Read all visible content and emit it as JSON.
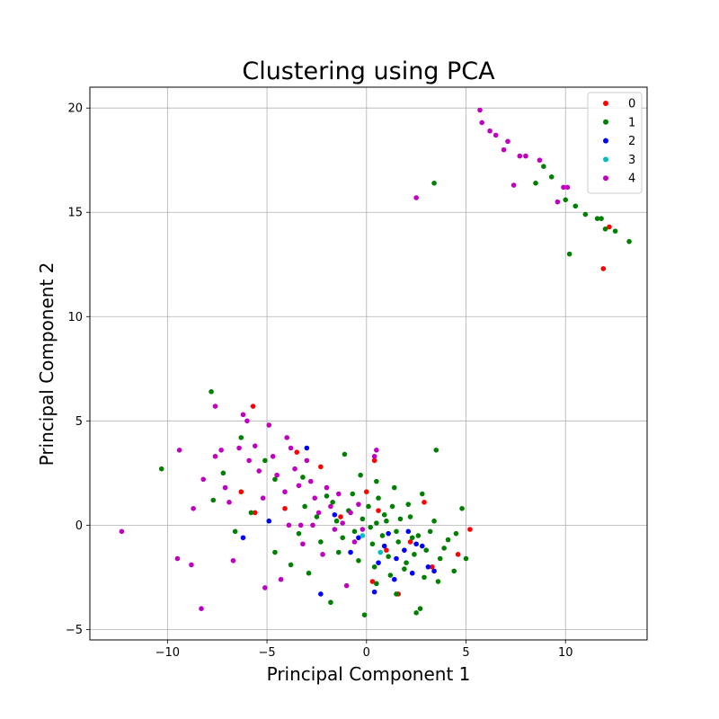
{
  "chart_data": {
    "type": "scatter",
    "title": "Clustering using PCA",
    "xlabel": "Principal Component 1",
    "ylabel": "Principal Component 2",
    "xlim": [
      -13.9,
      14.1
    ],
    "ylim": [
      -5.5,
      21.0
    ],
    "xticks": [
      -10,
      -5,
      0,
      5,
      10
    ],
    "yticks": [
      -5,
      0,
      5,
      10,
      15,
      20
    ],
    "grid": true,
    "legend_position": "top-right",
    "series": [
      {
        "name": "0",
        "color": "#ff0000",
        "points": [
          [
            -5.7,
            5.7
          ],
          [
            -6.3,
            1.6
          ],
          [
            -5.6,
            0.6
          ],
          [
            -4.1,
            0.8
          ],
          [
            -2.3,
            2.8
          ],
          [
            -3.5,
            3.5
          ],
          [
            0.4,
            3.1
          ],
          [
            0.0,
            1.6
          ],
          [
            0.6,
            0.7
          ],
          [
            2.9,
            1.1
          ],
          [
            1.6,
            -3.3
          ],
          [
            3.3,
            -2.0
          ],
          [
            4.6,
            -1.4
          ],
          [
            5.2,
            -0.2
          ],
          [
            0.3,
            -2.7
          ],
          [
            1.0,
            -1.2
          ],
          [
            2.2,
            -0.8
          ],
          [
            12.2,
            14.3
          ],
          [
            11.9,
            12.3
          ],
          [
            -1.3,
            0.4
          ]
        ]
      },
      {
        "name": "1",
        "color": "#008000",
        "points": [
          [
            -7.8,
            6.4
          ],
          [
            -10.3,
            2.7
          ],
          [
            -7.7,
            1.2
          ],
          [
            -6.3,
            4.2
          ],
          [
            -5.1,
            3.1
          ],
          [
            -4.6,
            2.2
          ],
          [
            -3.2,
            2.3
          ],
          [
            -2.0,
            1.4
          ],
          [
            -1.1,
            3.4
          ],
          [
            -0.3,
            2.4
          ],
          [
            0.5,
            2.1
          ],
          [
            1.4,
            1.8
          ],
          [
            2.8,
            1.5
          ],
          [
            3.5,
            3.6
          ],
          [
            4.8,
            0.8
          ],
          [
            5.0,
            -1.6
          ],
          [
            4.4,
            -2.2
          ],
          [
            3.6,
            -2.7
          ],
          [
            2.5,
            -4.2
          ],
          [
            2.7,
            -4.0
          ],
          [
            1.5,
            -3.3
          ],
          [
            0.5,
            -2.8
          ],
          [
            -0.1,
            -4.3
          ],
          [
            -1.8,
            -3.7
          ],
          [
            -2.9,
            -2.3
          ],
          [
            -3.8,
            -1.9
          ],
          [
            -4.6,
            -1.3
          ],
          [
            -5.8,
            0.6
          ],
          [
            -6.6,
            -0.3
          ],
          [
            -7.2,
            2.5
          ],
          [
            -1.4,
            -1.3
          ],
          [
            -0.6,
            -0.3
          ],
          [
            0.2,
            -0.1
          ],
          [
            0.9,
            0.5
          ],
          [
            1.7,
            0.3
          ],
          [
            2.3,
            -0.6
          ],
          [
            3.0,
            -1.2
          ],
          [
            3.7,
            -1.6
          ],
          [
            0.3,
            -0.9
          ],
          [
            1.1,
            -1.5
          ],
          [
            1.9,
            -2.1
          ],
          [
            2.6,
            -0.5
          ],
          [
            -0.9,
            0.7
          ],
          [
            -1.7,
            1.1
          ],
          [
            -2.5,
            0.4
          ],
          [
            -3.1,
            0.9
          ],
          [
            0.6,
            1.3
          ],
          [
            1.3,
            0.9
          ],
          [
            2.1,
            1.0
          ],
          [
            -0.2,
            0.3
          ],
          [
            0.8,
            -0.5
          ],
          [
            1.6,
            -0.8
          ],
          [
            2.4,
            -1.4
          ],
          [
            3.2,
            -0.3
          ],
          [
            4.1,
            -0.7
          ],
          [
            -1.2,
            -0.6
          ],
          [
            -0.4,
            -1.7
          ],
          [
            0.4,
            -2.0
          ],
          [
            1.2,
            -2.4
          ],
          [
            2.0,
            -1.8
          ],
          [
            2.9,
            -2.5
          ],
          [
            3.9,
            -1.1
          ],
          [
            0.1,
            0.9
          ],
          [
            -0.7,
            1.5
          ],
          [
            -1.5,
            0.2
          ],
          [
            -2.3,
            -0.8
          ],
          [
            -3.4,
            -0.4
          ],
          [
            0.5,
            0.1
          ],
          [
            1.0,
            0.2
          ],
          [
            1.5,
            -0.3
          ],
          [
            2.2,
            0.4
          ],
          [
            3.4,
            0.2
          ],
          [
            4.5,
            -0.4
          ],
          [
            3.4,
            16.4
          ],
          [
            8.5,
            16.4
          ],
          [
            9.3,
            16.7
          ],
          [
            10.0,
            15.6
          ],
          [
            10.5,
            15.3
          ],
          [
            11.0,
            14.9
          ],
          [
            11.6,
            14.7
          ],
          [
            12.0,
            14.2
          ],
          [
            12.5,
            14.1
          ],
          [
            13.2,
            13.6
          ],
          [
            10.2,
            13.0
          ],
          [
            8.9,
            17.2
          ],
          [
            11.8,
            14.7
          ]
        ]
      },
      {
        "name": "2",
        "color": "#0000ff",
        "points": [
          [
            -3.0,
            3.7
          ],
          [
            -2.3,
            -3.3
          ],
          [
            -4.9,
            0.2
          ],
          [
            -6.2,
            -0.6
          ],
          [
            0.4,
            -3.2
          ],
          [
            -0.8,
            -1.3
          ],
          [
            0.9,
            -1.0
          ],
          [
            1.5,
            -1.6
          ],
          [
            2.3,
            -2.3
          ],
          [
            3.1,
            -2.0
          ],
          [
            2.5,
            -0.9
          ],
          [
            1.1,
            -0.4
          ],
          [
            0.6,
            -1.8
          ],
          [
            1.9,
            -1.2
          ],
          [
            2.8,
            -1.0
          ],
          [
            3.4,
            -2.2
          ],
          [
            -1.6,
            0.5
          ],
          [
            -0.4,
            -0.6
          ],
          [
            1.4,
            -2.6
          ],
          [
            2.1,
            -0.3
          ]
        ]
      },
      {
        "name": "3",
        "color": "#00bfbf",
        "points": [
          [
            -0.2,
            -0.5
          ],
          [
            0.7,
            -1.3
          ]
        ]
      },
      {
        "name": "4",
        "color": "#bf00bf",
        "points": [
          [
            -12.3,
            -0.3
          ],
          [
            -9.4,
            3.6
          ],
          [
            -9.5,
            -1.6
          ],
          [
            -8.8,
            -1.9
          ],
          [
            -8.3,
            -4.0
          ],
          [
            -8.7,
            0.8
          ],
          [
            -8.2,
            2.2
          ],
          [
            -7.6,
            5.7
          ],
          [
            -7.6,
            3.3
          ],
          [
            -7.3,
            3.6
          ],
          [
            -7.1,
            1.8
          ],
          [
            -6.9,
            1.1
          ],
          [
            -6.7,
            -1.7
          ],
          [
            -6.4,
            3.7
          ],
          [
            -6.2,
            5.3
          ],
          [
            -6.0,
            5.0
          ],
          [
            -5.9,
            3.1
          ],
          [
            -5.6,
            3.8
          ],
          [
            -5.4,
            2.6
          ],
          [
            -5.2,
            1.3
          ],
          [
            -5.1,
            -3.0
          ],
          [
            -4.9,
            4.8
          ],
          [
            -4.7,
            3.3
          ],
          [
            -4.5,
            2.4
          ],
          [
            -4.3,
            -2.6
          ],
          [
            -4.1,
            1.6
          ],
          [
            -4.0,
            4.2
          ],
          [
            -3.8,
            3.7
          ],
          [
            -3.6,
            2.7
          ],
          [
            -3.4,
            1.9
          ],
          [
            -3.2,
            -0.9
          ],
          [
            -3.0,
            3.1
          ],
          [
            -2.8,
            2.1
          ],
          [
            -2.6,
            1.3
          ],
          [
            -2.4,
            0.6
          ],
          [
            -2.2,
            -1.4
          ],
          [
            -2.0,
            1.8
          ],
          [
            -1.8,
            0.9
          ],
          [
            -1.6,
            -0.2
          ],
          [
            -1.4,
            1.5
          ],
          [
            -1.2,
            0.1
          ],
          [
            -1.0,
            -2.9
          ],
          [
            -0.8,
            0.6
          ],
          [
            -0.6,
            -0.8
          ],
          [
            -0.4,
            1.0
          ],
          [
            -0.2,
            -0.2
          ],
          [
            0.5,
            3.6
          ],
          [
            0.4,
            3.3
          ],
          [
            2.5,
            15.7
          ],
          [
            5.7,
            19.9
          ],
          [
            5.8,
            19.3
          ],
          [
            6.2,
            18.9
          ],
          [
            6.5,
            18.7
          ],
          [
            6.9,
            18.0
          ],
          [
            7.1,
            18.4
          ],
          [
            7.4,
            16.3
          ],
          [
            7.7,
            17.7
          ],
          [
            8.0,
            17.7
          ],
          [
            8.7,
            17.5
          ],
          [
            9.6,
            15.5
          ],
          [
            9.9,
            16.2
          ],
          [
            10.1,
            16.2
          ],
          [
            -3.9,
            0.0
          ],
          [
            -3.3,
            0.0
          ],
          [
            -2.7,
            0.0
          ]
        ]
      }
    ]
  }
}
